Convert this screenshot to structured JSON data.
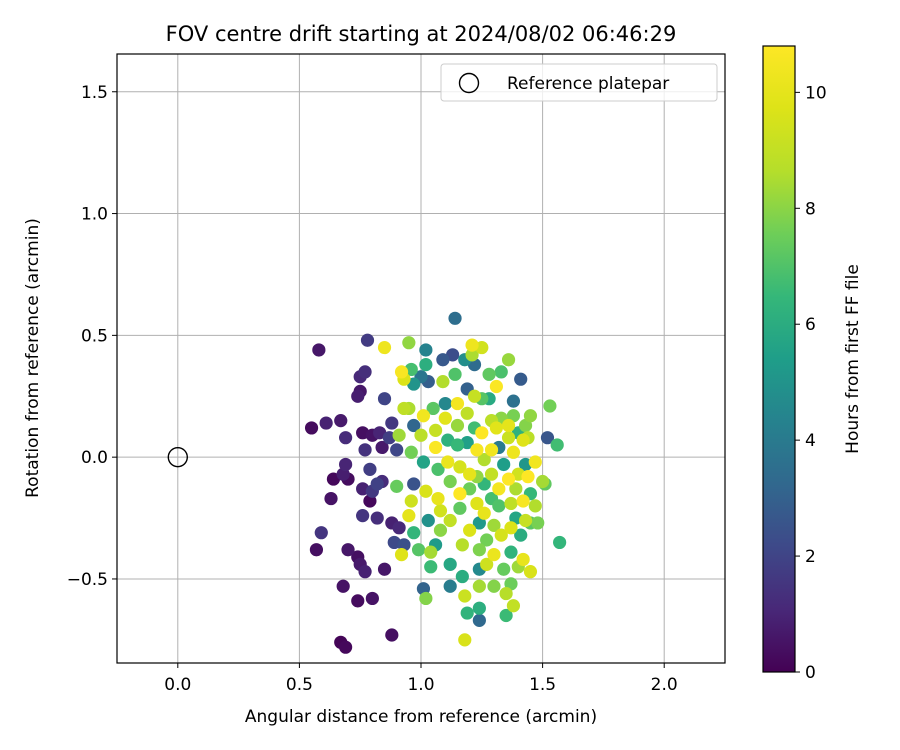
{
  "chart_data": {
    "type": "scatter",
    "title": "FOV centre drift starting at 2024/08/02 06:46:29",
    "xlabel": "Angular distance from reference (arcmin)",
    "ylabel": "Rotation from reference (arcmin)",
    "xlim": [
      -0.25,
      2.25
    ],
    "ylim": [
      -0.845,
      1.655
    ],
    "xticks": [
      0.0,
      0.5,
      1.0,
      1.5,
      2.0
    ],
    "xtick_labels": [
      "0.0",
      "0.5",
      "1.0",
      "1.5",
      "2.0"
    ],
    "yticks": [
      -0.5,
      0.0,
      0.5,
      1.0,
      1.5
    ],
    "ytick_labels": [
      "−0.5",
      "0.0",
      "0.5",
      "1.0",
      "1.5"
    ],
    "grid": true,
    "legend": {
      "position": "top-right",
      "entries": [
        "Reference platepar"
      ]
    },
    "reference_point": {
      "x": 0.0,
      "y": 0.0,
      "label": "Reference platepar"
    },
    "colorbar": {
      "label": "Hours from first FF file",
      "colormap": "viridis",
      "range": [
        0,
        10.8
      ],
      "ticks": [
        0,
        2,
        4,
        6,
        8,
        10
      ],
      "tick_labels": [
        "0",
        "2",
        "4",
        "6",
        "8",
        "10"
      ]
    },
    "points": [
      {
        "x": 0.55,
        "y": 0.12,
        "h": 0.3
      },
      {
        "x": 0.58,
        "y": 0.44,
        "h": 0.6
      },
      {
        "x": 0.61,
        "y": 0.14,
        "h": 0.9
      },
      {
        "x": 0.57,
        "y": -0.38,
        "h": 0.4
      },
      {
        "x": 0.59,
        "y": -0.31,
        "h": 1.5
      },
      {
        "x": 0.64,
        "y": -0.09,
        "h": 0.2
      },
      {
        "x": 0.63,
        "y": -0.17,
        "h": 0.5
      },
      {
        "x": 0.67,
        "y": 0.15,
        "h": 0.7
      },
      {
        "x": 0.69,
        "y": 0.08,
        "h": 1.2
      },
      {
        "x": 0.69,
        "y": -0.03,
        "h": 1.0
      },
      {
        "x": 0.68,
        "y": -0.07,
        "h": 0.8
      },
      {
        "x": 0.7,
        "y": -0.09,
        "h": 0.3
      },
      {
        "x": 0.68,
        "y": -0.53,
        "h": 0.5
      },
      {
        "x": 0.7,
        "y": -0.38,
        "h": 0.6
      },
      {
        "x": 0.67,
        "y": -0.76,
        "h": 0.1
      },
      {
        "x": 0.69,
        "y": -0.78,
        "h": 0.2
      },
      {
        "x": 0.74,
        "y": -0.41,
        "h": 0.4
      },
      {
        "x": 0.75,
        "y": -0.44,
        "h": 0.7
      },
      {
        "x": 0.77,
        "y": -0.47,
        "h": 0.9
      },
      {
        "x": 0.74,
        "y": -0.59,
        "h": 0.3
      },
      {
        "x": 0.8,
        "y": -0.58,
        "h": 0.5
      },
      {
        "x": 0.74,
        "y": 0.25,
        "h": 0.8
      },
      {
        "x": 0.75,
        "y": 0.33,
        "h": 1.1
      },
      {
        "x": 0.77,
        "y": 0.35,
        "h": 1.3
      },
      {
        "x": 0.75,
        "y": 0.27,
        "h": 0.6
      },
      {
        "x": 0.78,
        "y": 0.48,
        "h": 1.7
      },
      {
        "x": 0.76,
        "y": 0.1,
        "h": 0.4
      },
      {
        "x": 0.77,
        "y": 0.03,
        "h": 1.4
      },
      {
        "x": 0.79,
        "y": -0.05,
        "h": 1.8
      },
      {
        "x": 0.76,
        "y": -0.13,
        "h": 0.9
      },
      {
        "x": 0.8,
        "y": -0.14,
        "h": 1.6
      },
      {
        "x": 0.79,
        "y": -0.18,
        "h": 0.2
      },
      {
        "x": 0.8,
        "y": 0.09,
        "h": 0.5
      },
      {
        "x": 0.83,
        "y": 0.1,
        "h": 1.0
      },
      {
        "x": 0.82,
        "y": -0.11,
        "h": 1.9
      },
      {
        "x": 0.84,
        "y": -0.1,
        "h": 1.2
      },
      {
        "x": 0.76,
        "y": -0.24,
        "h": 1.5
      },
      {
        "x": 0.82,
        "y": -0.25,
        "h": 1.3
      },
      {
        "x": 0.84,
        "y": 0.04,
        "h": 0.7
      },
      {
        "x": 0.85,
        "y": 0.24,
        "h": 2.0
      },
      {
        "x": 0.85,
        "y": -0.46,
        "h": 0.6
      },
      {
        "x": 0.88,
        "y": -0.27,
        "h": 0.9
      },
      {
        "x": 0.91,
        "y": -0.29,
        "h": 1.1
      },
      {
        "x": 0.88,
        "y": -0.73,
        "h": 0.4
      },
      {
        "x": 0.88,
        "y": 0.14,
        "h": 1.6
      },
      {
        "x": 0.9,
        "y": 0.03,
        "h": 2.1
      },
      {
        "x": 0.87,
        "y": 0.08,
        "h": 1.8
      },
      {
        "x": 0.89,
        "y": -0.35,
        "h": 2.2
      },
      {
        "x": 0.93,
        "y": -0.36,
        "h": 2.4
      },
      {
        "x": 0.85,
        "y": 0.45,
        "h": 10.3
      },
      {
        "x": 0.92,
        "y": 0.35,
        "h": 10.6
      },
      {
        "x": 0.93,
        "y": 0.32,
        "h": 9.7
      },
      {
        "x": 0.9,
        "y": -0.12,
        "h": 7.4
      },
      {
        "x": 0.91,
        "y": 0.09,
        "h": 8.3
      },
      {
        "x": 0.93,
        "y": 0.2,
        "h": 8.9
      },
      {
        "x": 0.95,
        "y": 0.2,
        "h": 8.5
      },
      {
        "x": 0.92,
        "y": -0.4,
        "h": 9.8
      },
      {
        "x": 0.95,
        "y": 0.47,
        "h": 8.1
      },
      {
        "x": 0.96,
        "y": 0.36,
        "h": 6.8
      },
      {
        "x": 0.97,
        "y": 0.3,
        "h": 5.0
      },
      {
        "x": 0.97,
        "y": 0.13,
        "h": 3.2
      },
      {
        "x": 0.96,
        "y": 0.02,
        "h": 7.6
      },
      {
        "x": 0.97,
        "y": -0.11,
        "h": 2.5
      },
      {
        "x": 0.96,
        "y": -0.18,
        "h": 9.3
      },
      {
        "x": 0.95,
        "y": -0.24,
        "h": 10.0
      },
      {
        "x": 0.97,
        "y": -0.31,
        "h": 6.4
      },
      {
        "x": 0.99,
        "y": -0.38,
        "h": 7.1
      },
      {
        "x": 1.0,
        "y": 0.33,
        "h": 3.8
      },
      {
        "x": 1.01,
        "y": 0.17,
        "h": 10.4
      },
      {
        "x": 1.02,
        "y": 0.44,
        "h": 4.3
      },
      {
        "x": 1.02,
        "y": 0.38,
        "h": 6.1
      },
      {
        "x": 1.03,
        "y": 0.31,
        "h": 2.9
      },
      {
        "x": 1.0,
        "y": 0.09,
        "h": 8.8
      },
      {
        "x": 1.01,
        "y": -0.02,
        "h": 5.6
      },
      {
        "x": 1.02,
        "y": -0.14,
        "h": 9.6
      },
      {
        "x": 1.03,
        "y": -0.26,
        "h": 4.9
      },
      {
        "x": 1.01,
        "y": -0.54,
        "h": 3.1
      },
      {
        "x": 1.02,
        "y": -0.58,
        "h": 7.9
      },
      {
        "x": 1.04,
        "y": -0.45,
        "h": 6.6
      },
      {
        "x": 1.04,
        "y": -0.39,
        "h": 8.4
      },
      {
        "x": 1.05,
        "y": 0.2,
        "h": 7.2
      },
      {
        "x": 1.06,
        "y": 0.04,
        "h": 10.7
      },
      {
        "x": 1.06,
        "y": 0.11,
        "h": 9.1
      },
      {
        "x": 1.07,
        "y": -0.05,
        "h": 6.9
      },
      {
        "x": 1.07,
        "y": -0.17,
        "h": 10.1
      },
      {
        "x": 1.08,
        "y": -0.3,
        "h": 8.0
      },
      {
        "x": 1.08,
        "y": -0.22,
        "h": 9.4
      },
      {
        "x": 1.06,
        "y": -0.36,
        "h": 5.3
      },
      {
        "x": 1.09,
        "y": 0.4,
        "h": 2.7
      },
      {
        "x": 1.09,
        "y": 0.31,
        "h": 8.6
      },
      {
        "x": 1.1,
        "y": 0.22,
        "h": 4.5
      },
      {
        "x": 1.1,
        "y": 0.16,
        "h": 9.9
      },
      {
        "x": 1.11,
        "y": 0.07,
        "h": 6.2
      },
      {
        "x": 1.11,
        "y": -0.02,
        "h": 10.2
      },
      {
        "x": 1.12,
        "y": -0.1,
        "h": 7.7
      },
      {
        "x": 1.12,
        "y": -0.26,
        "h": 9.0
      },
      {
        "x": 1.12,
        "y": -0.44,
        "h": 5.8
      },
      {
        "x": 1.12,
        "y": -0.53,
        "h": 4.1
      },
      {
        "x": 1.14,
        "y": 0.57,
        "h": 3.5
      },
      {
        "x": 1.13,
        "y": 0.42,
        "h": 2.3
      },
      {
        "x": 1.14,
        "y": 0.34,
        "h": 7.0
      },
      {
        "x": 1.15,
        "y": 0.22,
        "h": 10.5
      },
      {
        "x": 1.15,
        "y": 0.13,
        "h": 8.2
      },
      {
        "x": 1.15,
        "y": 0.05,
        "h": 6.5
      },
      {
        "x": 1.16,
        "y": -0.04,
        "h": 9.5
      },
      {
        "x": 1.16,
        "y": -0.15,
        "h": 10.8
      },
      {
        "x": 1.16,
        "y": -0.21,
        "h": 7.3
      },
      {
        "x": 1.17,
        "y": -0.36,
        "h": 8.7
      },
      {
        "x": 1.17,
        "y": -0.49,
        "h": 6.0
      },
      {
        "x": 1.18,
        "y": -0.57,
        "h": 9.2
      },
      {
        "x": 1.18,
        "y": 0.4,
        "h": 4.8
      },
      {
        "x": 1.19,
        "y": 0.28,
        "h": 3.0
      },
      {
        "x": 1.19,
        "y": 0.18,
        "h": 8.9
      },
      {
        "x": 1.19,
        "y": 0.06,
        "h": 5.5
      },
      {
        "x": 1.2,
        "y": -0.07,
        "h": 10.0
      },
      {
        "x": 1.2,
        "y": -0.13,
        "h": 7.5
      },
      {
        "x": 1.2,
        "y": -0.3,
        "h": 9.7
      },
      {
        "x": 1.19,
        "y": -0.64,
        "h": 6.3
      },
      {
        "x": 1.18,
        "y": -0.75,
        "h": 9.6
      },
      {
        "x": 1.21,
        "y": 0.46,
        "h": 10.3
      },
      {
        "x": 1.21,
        "y": 0.42,
        "h": 8.5
      },
      {
        "x": 1.22,
        "y": 0.38,
        "h": 3.4
      },
      {
        "x": 1.22,
        "y": 0.25,
        "h": 9.1
      },
      {
        "x": 1.22,
        "y": 0.12,
        "h": 6.7
      },
      {
        "x": 1.23,
        "y": 0.03,
        "h": 10.6
      },
      {
        "x": 1.23,
        "y": -0.08,
        "h": 8.1
      },
      {
        "x": 1.23,
        "y": -0.19,
        "h": 9.8
      },
      {
        "x": 1.24,
        "y": -0.27,
        "h": 5.2
      },
      {
        "x": 1.24,
        "y": -0.38,
        "h": 7.8
      },
      {
        "x": 1.24,
        "y": -0.46,
        "h": 4.6
      },
      {
        "x": 1.24,
        "y": -0.53,
        "h": 8.4
      },
      {
        "x": 1.24,
        "y": -0.62,
        "h": 6.1
      },
      {
        "x": 1.24,
        "y": -0.67,
        "h": 3.3
      },
      {
        "x": 1.25,
        "y": 0.45,
        "h": 9.4
      },
      {
        "x": 1.25,
        "y": 0.24,
        "h": 7.1
      },
      {
        "x": 1.25,
        "y": 0.1,
        "h": 10.9
      },
      {
        "x": 1.26,
        "y": -0.01,
        "h": 8.6
      },
      {
        "x": 1.26,
        "y": -0.11,
        "h": 6.4
      },
      {
        "x": 1.26,
        "y": -0.23,
        "h": 10.1
      },
      {
        "x": 1.27,
        "y": -0.34,
        "h": 7.6
      },
      {
        "x": 1.27,
        "y": -0.44,
        "h": 9.3
      },
      {
        "x": 1.28,
        "y": 0.34,
        "h": 7.3
      },
      {
        "x": 1.28,
        "y": 0.24,
        "h": 5.9
      },
      {
        "x": 1.29,
        "y": 0.15,
        "h": 8.8
      },
      {
        "x": 1.29,
        "y": 0.03,
        "h": 10.4
      },
      {
        "x": 1.29,
        "y": -0.07,
        "h": 9.0
      },
      {
        "x": 1.29,
        "y": -0.17,
        "h": 6.8
      },
      {
        "x": 1.3,
        "y": -0.28,
        "h": 8.3
      },
      {
        "x": 1.3,
        "y": -0.4,
        "h": 10.2
      },
      {
        "x": 1.3,
        "y": -0.53,
        "h": 7.9
      },
      {
        "x": 1.31,
        "y": 0.29,
        "h": 10.7
      },
      {
        "x": 1.31,
        "y": 0.12,
        "h": 9.9
      },
      {
        "x": 1.32,
        "y": 0.04,
        "h": 4.0
      },
      {
        "x": 1.32,
        "y": -0.13,
        "h": 10.5
      },
      {
        "x": 1.32,
        "y": -0.2,
        "h": 7.0
      },
      {
        "x": 1.33,
        "y": -0.32,
        "h": 9.5
      },
      {
        "x": 1.33,
        "y": 0.35,
        "h": 6.9
      },
      {
        "x": 1.33,
        "y": 0.16,
        "h": 8.0
      },
      {
        "x": 1.34,
        "y": -0.03,
        "h": 5.4
      },
      {
        "x": 1.34,
        "y": -0.46,
        "h": 7.4
      },
      {
        "x": 1.35,
        "y": -0.56,
        "h": 8.7
      },
      {
        "x": 1.35,
        "y": -0.65,
        "h": 6.6
      },
      {
        "x": 1.36,
        "y": 0.4,
        "h": 8.2
      },
      {
        "x": 1.36,
        "y": 0.13,
        "h": 10.0
      },
      {
        "x": 1.36,
        "y": 0.08,
        "h": 9.2
      },
      {
        "x": 1.36,
        "y": -0.09,
        "h": 10.8
      },
      {
        "x": 1.37,
        "y": -0.19,
        "h": 8.9
      },
      {
        "x": 1.37,
        "y": -0.29,
        "h": 9.7
      },
      {
        "x": 1.37,
        "y": -0.39,
        "h": 6.3
      },
      {
        "x": 1.37,
        "y": -0.52,
        "h": 7.5
      },
      {
        "x": 1.38,
        "y": 0.23,
        "h": 3.6
      },
      {
        "x": 1.38,
        "y": 0.17,
        "h": 7.7
      },
      {
        "x": 1.38,
        "y": 0.02,
        "h": 10.3
      },
      {
        "x": 1.38,
        "y": -0.61,
        "h": 9.0
      },
      {
        "x": 1.39,
        "y": -0.13,
        "h": 8.5
      },
      {
        "x": 1.39,
        "y": -0.25,
        "h": 5.7
      },
      {
        "x": 1.4,
        "y": 0.1,
        "h": 6.2
      },
      {
        "x": 1.4,
        "y": -0.07,
        "h": 9.4
      },
      {
        "x": 1.4,
        "y": -0.45,
        "h": 8.3
      },
      {
        "x": 1.41,
        "y": 0.32,
        "h": 2.8
      },
      {
        "x": 1.41,
        "y": -0.32,
        "h": 6.0
      },
      {
        "x": 1.42,
        "y": 0.07,
        "h": 9.8
      },
      {
        "x": 1.42,
        "y": -0.18,
        "h": 10.6
      },
      {
        "x": 1.42,
        "y": -0.42,
        "h": 10.1
      },
      {
        "x": 1.43,
        "y": 0.13,
        "h": 7.9
      },
      {
        "x": 1.43,
        "y": -0.03,
        "h": 5.1
      },
      {
        "x": 1.43,
        "y": -0.26,
        "h": 9.1
      },
      {
        "x": 1.44,
        "y": 0.08,
        "h": 8.8
      },
      {
        "x": 1.44,
        "y": -0.08,
        "h": 10.9
      },
      {
        "x": 1.45,
        "y": -0.15,
        "h": 6.5
      },
      {
        "x": 1.45,
        "y": -0.27,
        "h": 7.2
      },
      {
        "x": 1.45,
        "y": 0.17,
        "h": 8.1
      },
      {
        "x": 1.45,
        "y": -0.47,
        "h": 9.6
      },
      {
        "x": 1.47,
        "y": -0.02,
        "h": 10.4
      },
      {
        "x": 1.47,
        "y": -0.2,
        "h": 8.6
      },
      {
        "x": 1.48,
        "y": -0.27,
        "h": 7.7
      },
      {
        "x": 1.5,
        "y": -0.1,
        "h": 8.4
      },
      {
        "x": 1.51,
        "y": -0.11,
        "h": 7.3
      },
      {
        "x": 1.52,
        "y": 0.08,
        "h": 2.6
      },
      {
        "x": 1.53,
        "y": 0.21,
        "h": 7.6
      },
      {
        "x": 1.56,
        "y": 0.05,
        "h": 6.7
      },
      {
        "x": 1.57,
        "y": -0.35,
        "h": 6.4
      }
    ]
  }
}
